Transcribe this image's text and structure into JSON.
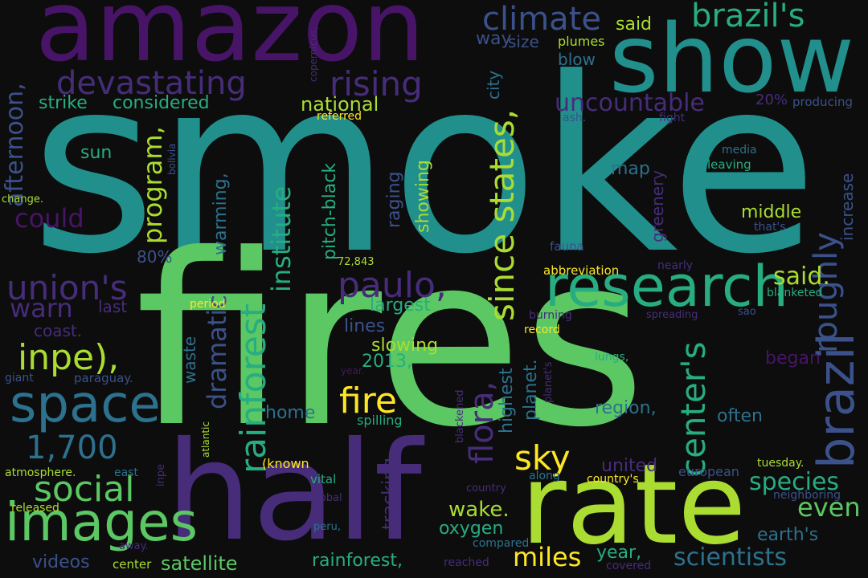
{
  "palette": {
    "background": "#0d0d0d",
    "deep_purple": "#481467",
    "purple": "#472c7a",
    "indigo": "#3b518b",
    "blue": "#2c718e",
    "teal": "#21908d",
    "teal_green": "#27ad81",
    "green": "#5cc863",
    "lime": "#aadc32",
    "yellow": "#fde725"
  },
  "words": {
    "smoke": "smoke",
    "fires": "fires",
    "amazon": "amazon",
    "half": "half",
    "show": "show",
    "rate": "rate",
    "research": "research",
    "images": "images",
    "space": "space",
    "brazil": "brazil",
    "rainforest": "rainforest",
    "social": "social",
    "paulo": "paulo,",
    "center": "center's",
    "since_states": "since states,",
    "inpe": "inpe),",
    "union": "union's",
    "climate": "climate",
    "brazils": "brazil's",
    "devastating": "devastating",
    "rising": "rising",
    "fire": "fire",
    "sky": "sky",
    "roughly": "roughly",
    "flora": "flora,",
    "n1700": "1,700",
    "warn": "warn",
    "could": "could",
    "program": "program,",
    "institute": "institute",
    "miles": "miles",
    "dramatic": "dramatic",
    "afternoon": "afternoon,",
    "uncountable": "uncountable",
    "even": "even",
    "species": "species",
    "scientists": "scientists",
    "said_dot": "said.",
    "wake": "wake.",
    "satellite": "satellite",
    "rainforest_comma": "rainforest,",
    "national": "national",
    "strike": "strike",
    "considered": "considered",
    "pitch_black": "pitch-black",
    "showing": "showing",
    "raging": "raging",
    "largest": "largest",
    "year": "year,",
    "said": "said",
    "oxygen": "oxygen",
    "region": "region,",
    "often": "often",
    "began": "began",
    "increase": "increase",
    "y2013": "2013,",
    "slowing": "slowing",
    "lines": "lines",
    "home": "home",
    "planet": "planet.",
    "highest": "highest",
    "tracking": "tracking",
    "united": "united",
    "earths": "earth's",
    "videos": "videos",
    "way": "way",
    "size": "size",
    "blow": "blow",
    "middle": "middle",
    "map": "map",
    "greenery": "greenery",
    "sun": "sun",
    "warming": "warming,",
    "city": "city",
    "waste": "waste",
    "p80": "80%",
    "p20": "20%",
    "producing": "producing",
    "last": "last",
    "coast": "coast.",
    "plumes": "plumes",
    "european": "european",
    "spilling": "spilling",
    "known": "(known",
    "paraguay": "paraguay.",
    "giant": "giant",
    "media": "media",
    "leaving": "leaving",
    "fauna": "fauna",
    "nearly": "nearly",
    "abbreviation": "abbreviation",
    "period": "period",
    "burning": "burning",
    "blanketed": "blanketed",
    "record": "record",
    "spreading": "spreading",
    "sao": "sao",
    "lungs": "lungs,",
    "planets": "planet's",
    "vital": "vital",
    "along": "along",
    "countrys": "country's",
    "tuesday": "tuesday.",
    "neighboring": "neighboring",
    "atmosphere": "atmosphere.",
    "east": "east",
    "inpe_small": "inpe",
    "released": "released",
    "global": "global",
    "country": "country",
    "peru": "peru,",
    "compared": "compared",
    "away": "away.",
    "center_small": "center",
    "reached": "reached",
    "covered": "covered",
    "referred": "referred",
    "ash": "ash.",
    "fight": "fight",
    "copernicus": "copernicus,",
    "bolivia": "bolivia",
    "change": "change.",
    "thats": "that's",
    "n72843": "72,843",
    "atlantic": "atlantic",
    "blackened": "blackened",
    "year_dot": "year."
  }
}
